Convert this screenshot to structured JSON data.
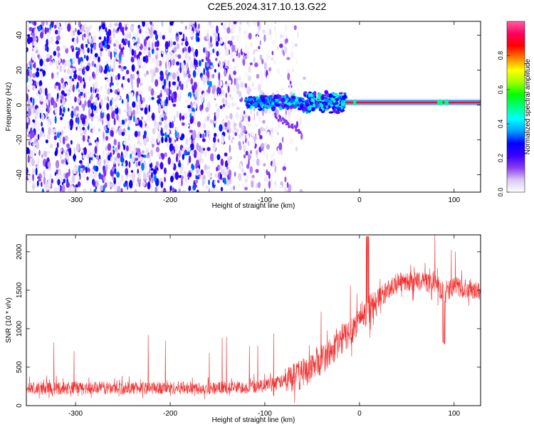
{
  "title": "C2E5.2024.317.10.13.G22",
  "chart_data": [
    {
      "type": "heatmap",
      "xlabel": "Height of straight line (km)",
      "ylabel": "Frequency (Hz)",
      "xlim": [
        -352,
        128
      ],
      "ylim": [
        -50,
        48
      ],
      "xticks": [
        -300,
        -200,
        -100,
        0,
        100
      ],
      "yticks": [
        -40,
        -20,
        0,
        20,
        40
      ],
      "colorbar": {
        "label": "Normalized spectral amplitude",
        "range": [
          0,
          1
        ],
        "ticks": [
          "0.0",
          "0.2",
          "0.4",
          "0.6",
          "0.8"
        ],
        "colors": [
          "#ffffff",
          "#d8c8f2",
          "#8a3cf0",
          "#3a00ff",
          "#0000ff",
          "#00a0ff",
          "#00ffff",
          "#00ff80",
          "#00ff00",
          "#a0ff00",
          "#ffff00",
          "#ff8000",
          "#ff0000",
          "#ff0060",
          "#ff60a0"
        ]
      },
      "features": {
        "noise_region_x": [
          -352,
          -70
        ],
        "noise_amplitude": [
          0.02,
          0.35
        ],
        "line_frequency_hz": 1.5,
        "signal_x": [
          -120,
          128
        ],
        "signal_amplitude": 1.0
      }
    },
    {
      "type": "line",
      "xlabel": "Height of straight line (km)",
      "ylabel": "SNR (10 * v/v)",
      "xlim": [
        -352,
        128
      ],
      "ylim": [
        0,
        2220
      ],
      "xticks": [
        -300,
        -200,
        -100,
        0,
        100
      ],
      "yticks": [
        0,
        500,
        1000,
        1500,
        2000
      ],
      "color": "#f03030",
      "x": [
        -350,
        -300,
        -250,
        -200,
        -150,
        -120,
        -100,
        -80,
        -60,
        -40,
        -30,
        -20,
        -10,
        0,
        5,
        10,
        20,
        30,
        40,
        60,
        80,
        90,
        100,
        128
      ],
      "y": [
        220,
        230,
        230,
        230,
        230,
        240,
        260,
        320,
        420,
        600,
        700,
        850,
        950,
        1150,
        1200,
        1250,
        1400,
        1500,
        1600,
        1620,
        1600,
        1450,
        1550,
        1500
      ]
    }
  ]
}
